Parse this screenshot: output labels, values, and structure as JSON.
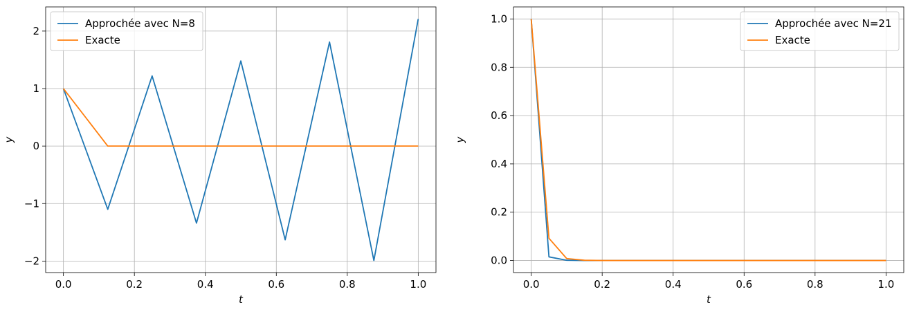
{
  "chart_data": [
    {
      "type": "line",
      "xlabel": "t",
      "ylabel": "y",
      "xlim": [
        -0.05,
        1.05
      ],
      "ylim": [
        -2.2,
        2.42
      ],
      "xticks": [
        0.0,
        0.2,
        0.4,
        0.6,
        0.8,
        1.0
      ],
      "xtick_labels": [
        "0.0",
        "0.2",
        "0.4",
        "0.6",
        "0.8",
        "1.0"
      ],
      "yticks": [
        -2,
        -1,
        0,
        1,
        2
      ],
      "ytick_labels": [
        "−2",
        "−1",
        "0",
        "1",
        "2"
      ],
      "grid": true,
      "legend_position": "upper left",
      "series": [
        {
          "name": "Approchée avec N=8",
          "color": "#1f77b4",
          "x": [
            0.0,
            0.125,
            0.25,
            0.375,
            0.5,
            0.625,
            0.75,
            0.875,
            1.0
          ],
          "y": [
            1.0,
            -1.1,
            1.22,
            -1.34,
            1.48,
            -1.63,
            1.81,
            -1.99,
            2.21
          ]
        },
        {
          "name": "Exacte",
          "color": "#ff7f0e",
          "x": [
            0.0,
            0.125,
            0.25,
            0.375,
            0.5,
            0.625,
            0.75,
            0.875,
            1.0
          ],
          "y": [
            1.0,
            0.0,
            0.0,
            0.0,
            0.0,
            0.0,
            0.0,
            0.0,
            0.0
          ]
        }
      ]
    },
    {
      "type": "line",
      "xlabel": "t",
      "ylabel": "y",
      "xlim": [
        -0.05,
        1.05
      ],
      "ylim": [
        -0.05,
        1.05
      ],
      "xticks": [
        0.0,
        0.2,
        0.4,
        0.6,
        0.8,
        1.0
      ],
      "xtick_labels": [
        "0.0",
        "0.2",
        "0.4",
        "0.6",
        "0.8",
        "1.0"
      ],
      "yticks": [
        0.0,
        0.2,
        0.4,
        0.6,
        0.8,
        1.0
      ],
      "ytick_labels": [
        "0.0",
        "0.2",
        "0.4",
        "0.6",
        "0.8",
        "1.0"
      ],
      "grid": true,
      "legend_position": "upper right",
      "series": [
        {
          "name": "Approchée avec N=21",
          "color": "#1f77b4",
          "x": [
            0.0,
            0.05,
            0.1,
            0.15,
            0.2,
            0.25,
            0.3,
            0.35,
            0.4,
            0.45,
            0.5,
            0.55,
            0.6,
            0.65,
            0.7,
            0.75,
            0.8,
            0.85,
            0.9,
            0.95,
            1.0
          ],
          "y": [
            1.0,
            0.015,
            0.001,
            0.0,
            0.0,
            0.0,
            0.0,
            0.0,
            0.0,
            0.0,
            0.0,
            0.0,
            0.0,
            0.0,
            0.0,
            0.0,
            0.0,
            0.0,
            0.0,
            0.0,
            0.0
          ]
        },
        {
          "name": "Exacte",
          "color": "#ff7f0e",
          "x": [
            0.0,
            0.05,
            0.1,
            0.15,
            0.2,
            0.25,
            0.3,
            0.35,
            0.4,
            0.45,
            0.5,
            0.55,
            0.6,
            0.65,
            0.7,
            0.75,
            0.8,
            0.85,
            0.9,
            0.95,
            1.0
          ],
          "y": [
            1.0,
            0.092,
            0.008,
            0.001,
            0.0,
            0.0,
            0.0,
            0.0,
            0.0,
            0.0,
            0.0,
            0.0,
            0.0,
            0.0,
            0.0,
            0.0,
            0.0,
            0.0,
            0.0,
            0.0,
            0.0
          ]
        }
      ]
    }
  ]
}
